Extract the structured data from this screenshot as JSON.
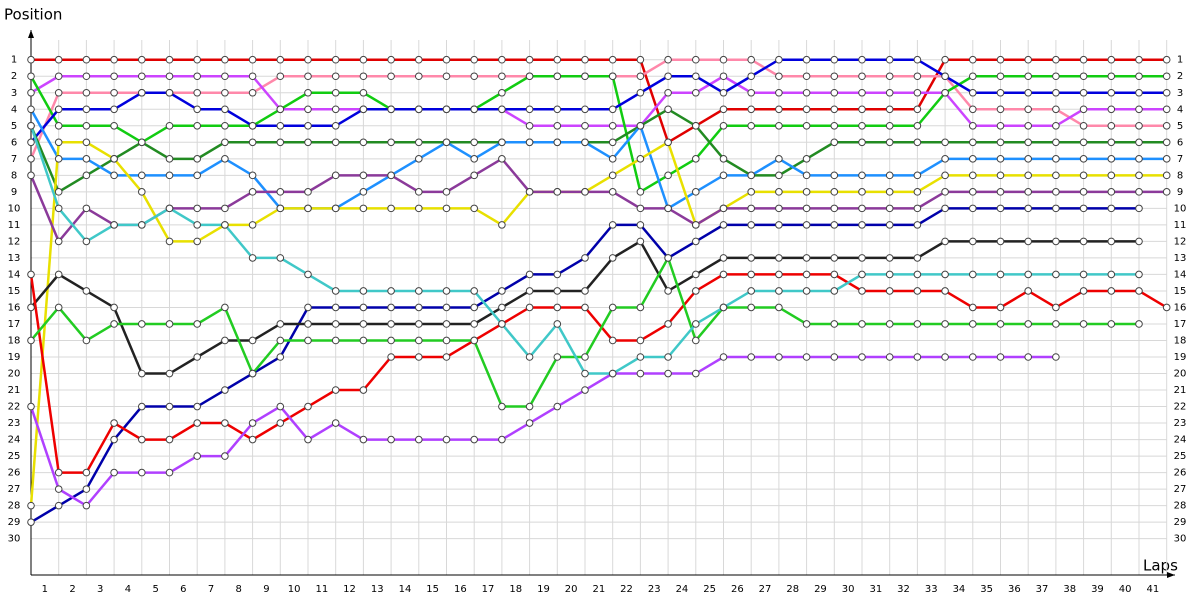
{
  "chart_data": {
    "type": "line",
    "x_label": "Laps",
    "y_label": "Position",
    "xlim": [
      0,
      41.3
    ],
    "ylim": [
      32.2,
      -0.8
    ],
    "grid": true,
    "x": [
      0,
      1,
      2,
      3,
      4,
      5,
      6,
      7,
      8,
      9,
      10,
      11,
      12,
      13,
      14,
      15,
      16,
      17,
      18,
      19,
      20,
      21,
      22,
      23,
      24,
      25,
      26,
      27,
      28,
      29,
      30,
      31,
      32,
      33,
      34,
      35,
      36,
      37,
      38,
      39,
      40,
      41
    ],
    "xticks": [
      1,
      2,
      3,
      4,
      5,
      6,
      7,
      8,
      9,
      10,
      11,
      12,
      13,
      14,
      15,
      16,
      17,
      18,
      19,
      20,
      21,
      22,
      23,
      24,
      25,
      26,
      27,
      28,
      29,
      30,
      31,
      32,
      33,
      34,
      35,
      36,
      37,
      38,
      39,
      40,
      41
    ],
    "yticks": [
      1,
      2,
      3,
      4,
      5,
      6,
      7,
      8,
      9,
      10,
      11,
      12,
      13,
      14,
      15,
      16,
      17,
      18,
      19,
      20,
      21,
      22,
      23,
      24,
      25,
      26,
      27,
      28,
      29,
      30
    ],
    "series": [
      {
        "color": "#e00000",
        "values": [
          1,
          1,
          1,
          1,
          1,
          1,
          1,
          1,
          1,
          1,
          1,
          1,
          1,
          1,
          1,
          1,
          1,
          1,
          1,
          1,
          1,
          1,
          1,
          6,
          5,
          4,
          4,
          4,
          4,
          4,
          4,
          4,
          4,
          1,
          1,
          1,
          1,
          1,
          1,
          1,
          1,
          1
        ]
      },
      {
        "color": "#ff88aa",
        "values": [
          7,
          3,
          3,
          3,
          3,
          3,
          3,
          3,
          3,
          2,
          2,
          2,
          2,
          2,
          2,
          2,
          2,
          2,
          2,
          2,
          2,
          2,
          2,
          1,
          1,
          1,
          1,
          2,
          2,
          2,
          2,
          2,
          2,
          2,
          4,
          4,
          4,
          4,
          5,
          5,
          5,
          5
        ]
      },
      {
        "color": "#cc44ff",
        "values": [
          3,
          2,
          2,
          2,
          2,
          2,
          2,
          2,
          2,
          4,
          4,
          4,
          4,
          4,
          4,
          4,
          4,
          4,
          5,
          5,
          5,
          5,
          5,
          3,
          3,
          2,
          3,
          3,
          3,
          3,
          3,
          3,
          3,
          3,
          5,
          5,
          5,
          5,
          4,
          4,
          4,
          4
        ]
      },
      {
        "color": "#11cc11",
        "values": [
          2,
          5,
          5,
          5,
          6,
          5,
          5,
          5,
          5,
          4,
          3,
          3,
          3,
          4,
          4,
          4,
          4,
          3,
          2,
          2,
          2,
          2,
          9,
          8,
          7,
          5,
          5,
          5,
          5,
          5,
          5,
          5,
          5,
          3,
          2,
          2,
          2,
          2,
          2,
          2,
          2,
          2
        ]
      },
      {
        "color": "#0000dd",
        "values": [
          6,
          4,
          4,
          4,
          3,
          3,
          4,
          4,
          5,
          5,
          5,
          5,
          4,
          4,
          4,
          4,
          4,
          4,
          4,
          4,
          4,
          4,
          3,
          2,
          2,
          3,
          2,
          1,
          1,
          1,
          1,
          1,
          1,
          2,
          3,
          3,
          3,
          3,
          3,
          3,
          3,
          3
        ]
      },
      {
        "color": "#228b22",
        "values": [
          5,
          9,
          8,
          7,
          6,
          7,
          7,
          6,
          6,
          6,
          6,
          6,
          6,
          6,
          6,
          6,
          6,
          6,
          6,
          6,
          6,
          6,
          5,
          4,
          5,
          7,
          8,
          8,
          7,
          6,
          6,
          6,
          6,
          6,
          6,
          6,
          6,
          6,
          6,
          6,
          6,
          6
        ]
      },
      {
        "color": "#1e90ff",
        "values": [
          4,
          7,
          7,
          8,
          8,
          8,
          8,
          7,
          8,
          10,
          10,
          10,
          9,
          8,
          7,
          6,
          7,
          6,
          6,
          6,
          6,
          7,
          5,
          10,
          9,
          8,
          8,
          7,
          8,
          8,
          8,
          8,
          8,
          7,
          7,
          7,
          7,
          7,
          7,
          7,
          7,
          7
        ]
      },
      {
        "color": "#e8e000",
        "values": [
          28,
          6,
          6,
          7,
          9,
          12,
          12,
          11,
          11,
          10,
          10,
          10,
          10,
          10,
          10,
          10,
          10,
          11,
          9,
          9,
          9,
          8,
          7,
          6,
          11,
          10,
          9,
          9,
          9,
          9,
          9,
          9,
          9,
          8,
          8,
          8,
          8,
          8,
          8,
          8,
          8,
          8
        ]
      },
      {
        "color": "#8b3a9a",
        "values": [
          8,
          12,
          10,
          11,
          11,
          10,
          10,
          10,
          9,
          9,
          9,
          8,
          8,
          8,
          9,
          9,
          8,
          7,
          9,
          9,
          9,
          9,
          10,
          10,
          11,
          10,
          10,
          10,
          10,
          10,
          10,
          10,
          10,
          9,
          9,
          9,
          9,
          9,
          9,
          9,
          9,
          9
        ]
      },
      {
        "color": "#0000aa",
        "values": [
          29,
          28,
          27,
          24,
          22,
          22,
          22,
          21,
          20,
          19,
          16,
          16,
          16,
          16,
          16,
          16,
          16,
          15,
          14,
          14,
          13,
          11,
          11,
          13,
          12,
          11,
          11,
          11,
          11,
          11,
          11,
          11,
          11,
          10,
          10,
          10,
          10,
          10,
          10,
          10,
          10,
          null
        ]
      },
      {
        "color": "#222222",
        "values": [
          16,
          14,
          15,
          16,
          20,
          20,
          19,
          18,
          18,
          17,
          17,
          17,
          17,
          17,
          17,
          17,
          17,
          16,
          15,
          15,
          15,
          13,
          12,
          15,
          14,
          13,
          13,
          13,
          13,
          13,
          13,
          13,
          13,
          12,
          12,
          12,
          12,
          12,
          12,
          12,
          12,
          null
        ]
      },
      {
        "color": "#ee0000",
        "values": [
          14,
          26,
          26,
          23,
          24,
          24,
          23,
          23,
          24,
          23,
          22,
          21,
          21,
          19,
          19,
          19,
          18,
          17,
          16,
          16,
          16,
          18,
          18,
          17,
          15,
          14,
          14,
          14,
          14,
          14,
          15,
          15,
          15,
          15,
          16,
          16,
          15,
          16,
          15,
          15,
          15,
          16
        ]
      },
      {
        "color": "#22cc22",
        "values": [
          18,
          16,
          18,
          17,
          17,
          17,
          17,
          16,
          20,
          18,
          18,
          18,
          18,
          18,
          18,
          18,
          18,
          22,
          22,
          19,
          19,
          16,
          16,
          13,
          18,
          16,
          16,
          16,
          17,
          17,
          17,
          17,
          17,
          17,
          17,
          17,
          17,
          17,
          17,
          17,
          17,
          null
        ]
      },
      {
        "color": "#b040ff",
        "values": [
          22,
          27,
          28,
          26,
          26,
          26,
          25,
          25,
          23,
          22,
          24,
          23,
          24,
          24,
          24,
          24,
          24,
          24,
          23,
          22,
          21,
          20,
          20,
          20,
          20,
          19,
          19,
          19,
          19,
          19,
          19,
          19,
          19,
          19,
          19,
          19,
          19,
          19,
          null,
          null,
          null,
          null
        ]
      },
      {
        "color": "#40c8c8",
        "values": [
          5,
          10,
          12,
          11,
          11,
          10,
          11,
          11,
          13,
          13,
          14,
          15,
          15,
          15,
          15,
          15,
          15,
          17,
          19,
          17,
          20,
          20,
          19,
          19,
          17,
          16,
          15,
          15,
          15,
          15,
          14,
          14,
          14,
          14,
          14,
          14,
          14,
          14,
          14,
          14,
          14,
          null
        ]
      }
    ]
  }
}
